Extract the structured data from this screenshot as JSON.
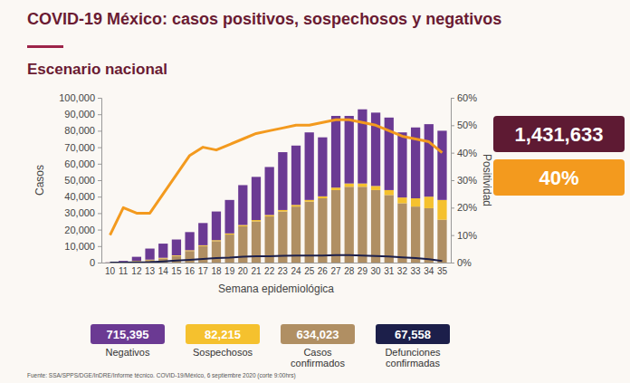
{
  "chart_data": {
    "type": "bar",
    "title": "COVID-19 México: casos positivos, sospechosos y negativos",
    "subtitle": "Escenario nacional",
    "x_label": "Semana epidemiológica",
    "y_label": "Casos",
    "y2_label": "Positividad",
    "stacked": true,
    "grid": false,
    "legend": "bottom",
    "categories": [
      "10",
      "11",
      "12",
      "13",
      "14",
      "15",
      "16",
      "17",
      "18",
      "19",
      "20",
      "21",
      "22",
      "23",
      "24",
      "25",
      "26",
      "27",
      "28",
      "29",
      "30",
      "31",
      "32",
      "33",
      "34",
      "35"
    ],
    "ylim": [
      0,
      100000
    ],
    "yticks": [
      0,
      {
        "value": 10000,
        "label": "10,000"
      },
      {
        "value": 20000,
        "label": "20,000"
      },
      {
        "value": 30000,
        "label": "30,000"
      },
      {
        "value": 40000,
        "label": "40,000"
      },
      {
        "value": 50000,
        "label": "50,000"
      },
      {
        "value": 60000,
        "label": "60,000"
      },
      {
        "value": 70000,
        "label": "70,000"
      },
      {
        "value": 80000,
        "label": "80,000"
      },
      {
        "value": 90000,
        "label": "90,000"
      },
      {
        "value": 100000,
        "label": "100,000"
      }
    ],
    "y2lim": [
      0,
      60
    ],
    "y2ticks": [
      {
        "value": 0,
        "label": "0%"
      },
      {
        "value": 10,
        "label": "10%"
      },
      {
        "value": 20,
        "label": "20%"
      },
      {
        "value": 30,
        "label": "30%"
      },
      {
        "value": 40,
        "label": "40%"
      },
      {
        "value": 50,
        "label": "50%"
      },
      {
        "value": 60,
        "label": "60%"
      }
    ],
    "series": [
      {
        "name": "Negativos",
        "type": "bar",
        "color": "#6b3a93",
        "total": 715395,
        "total_label": "715,395",
        "values": [
          120,
          600,
          2400,
          6700,
          8600,
          9600,
          11000,
          13500,
          17400,
          20300,
          24200,
          26200,
          29100,
          35100,
          36000,
          41000,
          35800,
          43500,
          41000,
          45000,
          44500,
          44000,
          39500,
          43000,
          44000,
          42000
        ]
      },
      {
        "name": "Sospechosos",
        "type": "bar",
        "color": "#f5c12e",
        "total": 82215,
        "total_label": "82,215",
        "values": [
          30,
          100,
          200,
          300,
          400,
          400,
          500,
          500,
          600,
          700,
          800,
          800,
          900,
          900,
          1000,
          1000,
          1200,
          1500,
          2000,
          2000,
          2500,
          3000,
          3500,
          5000,
          7000,
          12000
        ]
      },
      {
        "name": "Casos confirmados",
        "type": "bar",
        "color": "#b08f63",
        "total": 634023,
        "total_label": "634,023",
        "values": [
          50,
          300,
          900,
          1500,
          2500,
          4000,
          7000,
          10000,
          13000,
          17000,
          22000,
          25000,
          28000,
          31000,
          34000,
          37000,
          39000,
          44000,
          46000,
          46000,
          44000,
          41000,
          36000,
          34000,
          33000,
          26000
        ]
      },
      {
        "name": "Defunciones confirmadas",
        "type": "line",
        "color": "#1c1f4a",
        "total": 67558,
        "total_label": "67,558",
        "values": [
          0,
          10,
          100,
          300,
          700,
          1200,
          1700,
          2200,
          2700,
          3000,
          3600,
          3800,
          3900,
          4100,
          4200,
          4300,
          4300,
          4500,
          4500,
          4300,
          4000,
          3700,
          3200,
          2700,
          2000,
          900
        ]
      },
      {
        "type": "line",
        "axis": "y2",
        "color": "#f39a1e",
        "values": [
          10,
          20,
          18,
          18,
          25,
          32,
          39,
          42,
          41,
          43,
          45,
          47,
          48,
          49,
          50,
          50,
          51,
          52,
          52,
          51,
          50,
          48,
          46,
          45,
          44,
          40
        ]
      }
    ],
    "summary": [
      {
        "value": 1431633,
        "label": "1,431,633",
        "color": "#5e1a33"
      },
      {
        "value": 40,
        "label": "40%",
        "color": "#f39a1e"
      }
    ],
    "source": "Fuente: SSA/SPPS/DGE/InDRE/Informe técnico. COVID-19/México, 6 septiembre 2020 (corte 9:00hrs)"
  }
}
